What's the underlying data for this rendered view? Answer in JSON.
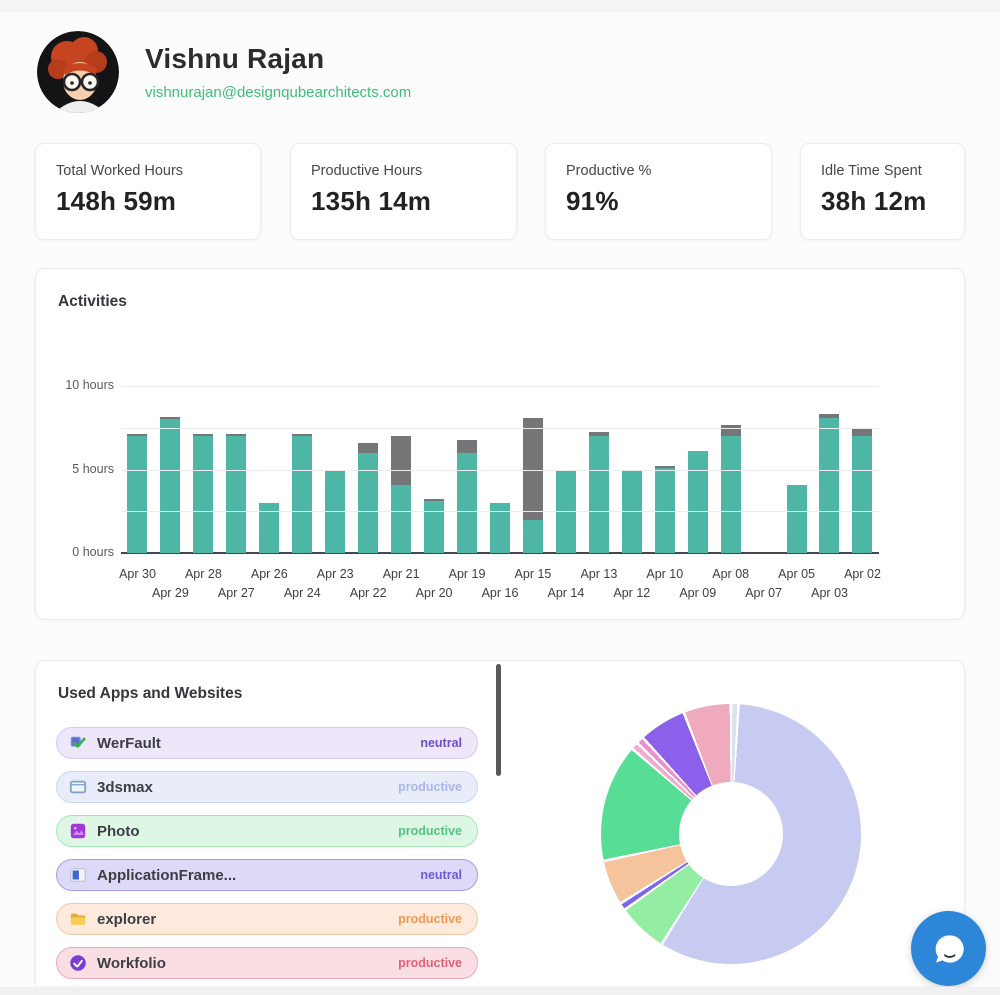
{
  "header": {
    "name": "Vishnu Rajan",
    "email": "vishnurajan@designqubearchitects.com"
  },
  "stats": [
    {
      "label": "Total Worked Hours",
      "value": "148h 59m"
    },
    {
      "label": "Productive Hours",
      "value": "135h 14m"
    },
    {
      "label": "Productive %",
      "value": "91%"
    },
    {
      "label": "Idle Time Spent",
      "value": "38h 12m"
    }
  ],
  "activities": {
    "title": "Activities"
  },
  "chart_data": [
    {
      "type": "bar",
      "stacked": true,
      "title": "Activities",
      "categories": [
        "Apr 30",
        "Apr 29",
        "Apr 28",
        "Apr 27",
        "Apr 26",
        "Apr 24",
        "Apr 23",
        "Apr 22",
        "Apr 21",
        "Apr 20",
        "Apr 19",
        "Apr 16",
        "Apr 15",
        "Apr 14",
        "Apr 13",
        "Apr 12",
        "Apr 10",
        "Apr 09",
        "Apr 08",
        "Apr 07",
        "Apr 05",
        "Apr 03",
        "Apr 02"
      ],
      "series": [
        {
          "name": "productive",
          "color": "#4db6a4",
          "values": [
            7.0,
            8.0,
            7.0,
            7.0,
            3.0,
            7.0,
            5.0,
            6.0,
            4.1,
            3.1,
            6.0,
            3.0,
            2.0,
            5.0,
            7.0,
            5.0,
            5.1,
            6.1,
            7.0,
            0,
            4.1,
            8.1,
            7.0
          ]
        },
        {
          "name": "neutral",
          "color": "#767679",
          "values": [
            0.1,
            0.15,
            0.15,
            0.1,
            0,
            0.1,
            0,
            0.6,
            2.9,
            0.15,
            0.75,
            0,
            6.1,
            0,
            0.25,
            0,
            0.1,
            0,
            0.65,
            0,
            0,
            0.25,
            0.5
          ]
        }
      ],
      "ylim": [
        0,
        10
      ],
      "ytick_labels": [
        "10 hours",
        "5 hours",
        "0 hours"
      ],
      "gridline_interval_hours": 2.5,
      "x_label_layout": "alternating-two-rows",
      "legend": "none"
    },
    {
      "type": "pie",
      "donut": true,
      "title": "",
      "slices": [
        {
          "id": "sliver-top",
          "color": "#dfdff2",
          "pct": 0.6
        },
        {
          "id": "lavender",
          "color": "#c7cbf1",
          "pct": 58.0
        },
        {
          "id": "light-green",
          "color": "#93eda2",
          "pct": 5.9
        },
        {
          "id": "indigo-sliver",
          "color": "#7b68ee",
          "pct": 0.6
        },
        {
          "id": "peach",
          "color": "#f5c49c",
          "pct": 5.3
        },
        {
          "id": "emerald",
          "color": "#57dd96",
          "pct": 14.4
        },
        {
          "id": "pink-sliver",
          "color": "#f2a9cb",
          "pct": 0.6
        },
        {
          "id": "magenta-sliver",
          "color": "#ee8fd4",
          "pct": 0.6
        },
        {
          "id": "purple",
          "color": "#8d60ec",
          "pct": 5.6
        },
        {
          "id": "pink",
          "color": "#f0aabe",
          "pct": 5.6
        }
      ],
      "legend": "none",
      "labels_shown": false
    }
  ],
  "apps": {
    "title": "Used Apps and Websites",
    "items": [
      {
        "name": "WerFault",
        "tag": "neutral",
        "icon": "werfault",
        "bg": "#ede7f9",
        "border": "#d7c9f0",
        "tag_color": "#6d4fc8"
      },
      {
        "name": "3dsmax",
        "tag": "productive",
        "icon": "window",
        "bg": "#e9edfa",
        "border": "#ccd6f4",
        "tag_color": "#a9b6e8"
      },
      {
        "name": "Photo",
        "tag": "productive",
        "icon": "photo",
        "bg": "#def7e5",
        "border": "#a2e7b3",
        "tag_color": "#55c284"
      },
      {
        "name": "ApplicationFrame...",
        "tag": "neutral",
        "icon": "app-frame",
        "bg": "#dcdaf7",
        "border": "#a49cea",
        "tag_color": "#6c5cd9"
      },
      {
        "name": "explorer",
        "tag": "productive",
        "icon": "folder",
        "bg": "#fdeadd",
        "border": "#f3c8a5",
        "tag_color": "#ec9a52"
      },
      {
        "name": "Workfolio",
        "tag": "productive",
        "icon": "workfolio",
        "bg": "#f9dfe4",
        "border": "#edaab6",
        "tag_color": "#e26176"
      }
    ]
  },
  "chat": {
    "color": "#2e86d9"
  }
}
